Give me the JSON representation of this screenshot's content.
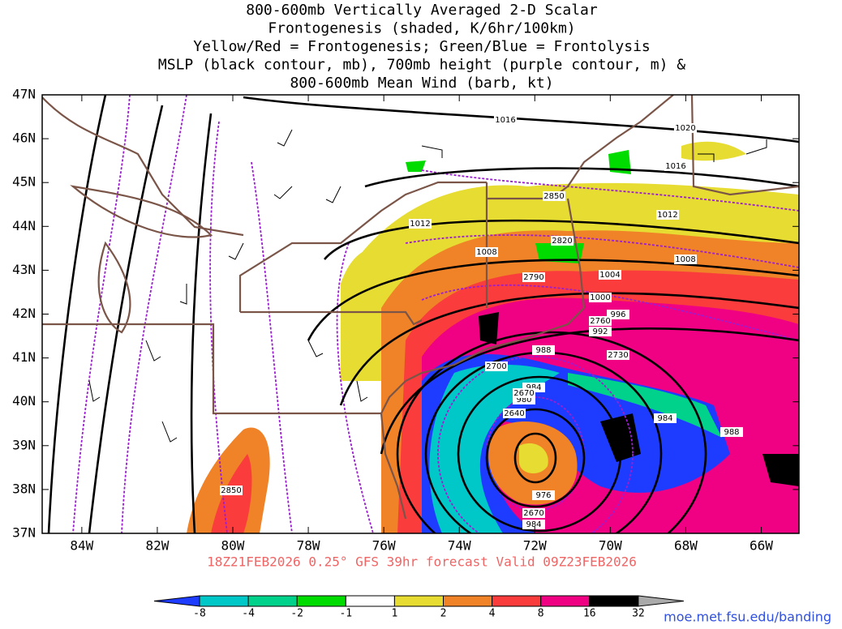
{
  "title_lines": [
    "800-600mb Vertically Averaged 2-D Scalar",
    "Frontogenesis (shaded, K/6hr/100km)",
    "Yellow/Red = Frontogenesis;  Green/Blue = Frontolysis",
    "MSLP (black contour, mb), 700mb height (purple contour, m) &",
    "800-600mb Mean Wind (barb, kt)"
  ],
  "lonlim": [
    -85.05,
    -65
  ],
  "latlim": [
    37,
    47
  ],
  "lon_ticks": [
    {
      "value": -84,
      "label": "84W"
    },
    {
      "value": -82,
      "label": "82W"
    },
    {
      "value": -80,
      "label": "80W"
    },
    {
      "value": -78,
      "label": "78W"
    },
    {
      "value": -76,
      "label": "76W"
    },
    {
      "value": -74,
      "label": "74W"
    },
    {
      "value": -72,
      "label": "72W"
    },
    {
      "value": -70,
      "label": "70W"
    },
    {
      "value": -68,
      "label": "68W"
    },
    {
      "value": -66,
      "label": "66W"
    }
  ],
  "lat_ticks": [
    {
      "value": 37,
      "label": "37N"
    },
    {
      "value": 38,
      "label": "38N"
    },
    {
      "value": 39,
      "label": "39N"
    },
    {
      "value": 40,
      "label": "40N"
    },
    {
      "value": 41,
      "label": "41N"
    },
    {
      "value": 42,
      "label": "42N"
    },
    {
      "value": 43,
      "label": "43N"
    },
    {
      "value": 44,
      "label": "44N"
    },
    {
      "value": 45,
      "label": "45N"
    },
    {
      "value": 46,
      "label": "46N"
    },
    {
      "value": 47,
      "label": "47N"
    }
  ],
  "pressure_labels": [
    "1016",
    "1020",
    "1016",
    "1012",
    "1012",
    "1008",
    "1008",
    "1004",
    "1000",
    "996",
    "992",
    "988",
    "984",
    "980",
    "984",
    "988",
    "976",
    "984"
  ],
  "height_labels": [
    "2850",
    "2820",
    "2790",
    "2760",
    "2730",
    "2700",
    "2670",
    "2640",
    "2670",
    "2850"
  ],
  "footer": "18Z21FEB2026 0.25° GFS 39hr forecast Valid 09Z23FEB2026",
  "colorbar": {
    "levels": [
      -8,
      -4,
      -2,
      -1,
      1,
      2,
      4,
      8,
      16,
      32
    ],
    "colors": [
      "#1e3cff",
      "#00c8c8",
      "#00d28c",
      "#00dc00",
      "#ffffff",
      "#e6dc32",
      "#f08228",
      "#fa3c3c",
      "#f00082",
      "#000000",
      "#aaaaaa"
    ]
  },
  "credit": "moe.met.fsu.edu/banding"
}
